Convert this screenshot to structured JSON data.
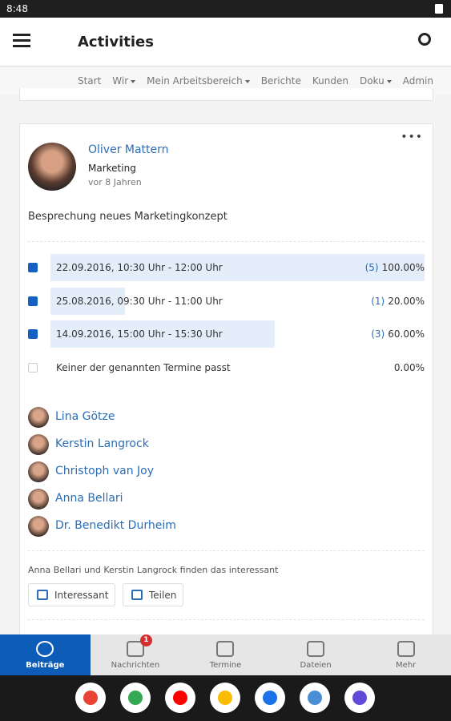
{
  "status": {
    "time": "8:48"
  },
  "header": {
    "title": "Activities"
  },
  "nav": [
    "Start",
    "Wir",
    "Mein Arbeitsbereich",
    "Berichte",
    "Kunden",
    "Doku",
    "Admin"
  ],
  "post": {
    "author": "Oliver Mattern",
    "department": "Marketing",
    "time": "vor 8 Jahren",
    "text": "Besprechung neues Marketingkonzept",
    "poll": [
      {
        "label": "22.09.2016, 10:30 Uhr - 12:00 Uhr",
        "votes": "(5)",
        "percent": 100,
        "percent_label": "100.00%",
        "checked": true
      },
      {
        "label": "25.08.2016, 09:30 Uhr - 11:00 Uhr",
        "votes": "(1)",
        "percent": 20,
        "percent_label": "20.00%",
        "checked": true
      },
      {
        "label": "14.09.2016, 15:00 Uhr - 15:30 Uhr",
        "votes": "(3)",
        "percent": 60,
        "percent_label": "60.00%",
        "checked": true
      },
      {
        "label": "Keiner der genannten Termine passt",
        "percent": 0,
        "percent_label": "0.00%",
        "checked": false
      }
    ],
    "participants": [
      "Lina Götze",
      "Kerstin Langrock",
      "Christoph van Joy",
      "Anna Bellari",
      "Dr. Benedikt Durheim"
    ],
    "likes": "Anna Bellari und Kerstin Langrock finden das interessant",
    "buttons": [
      "Interessant",
      "Teilen"
    ]
  },
  "bottom_nav": {
    "items": [
      "Beiträge",
      "Nachrichten",
      "Termine",
      "Dateien",
      "Mehr"
    ],
    "badge": "1"
  }
}
